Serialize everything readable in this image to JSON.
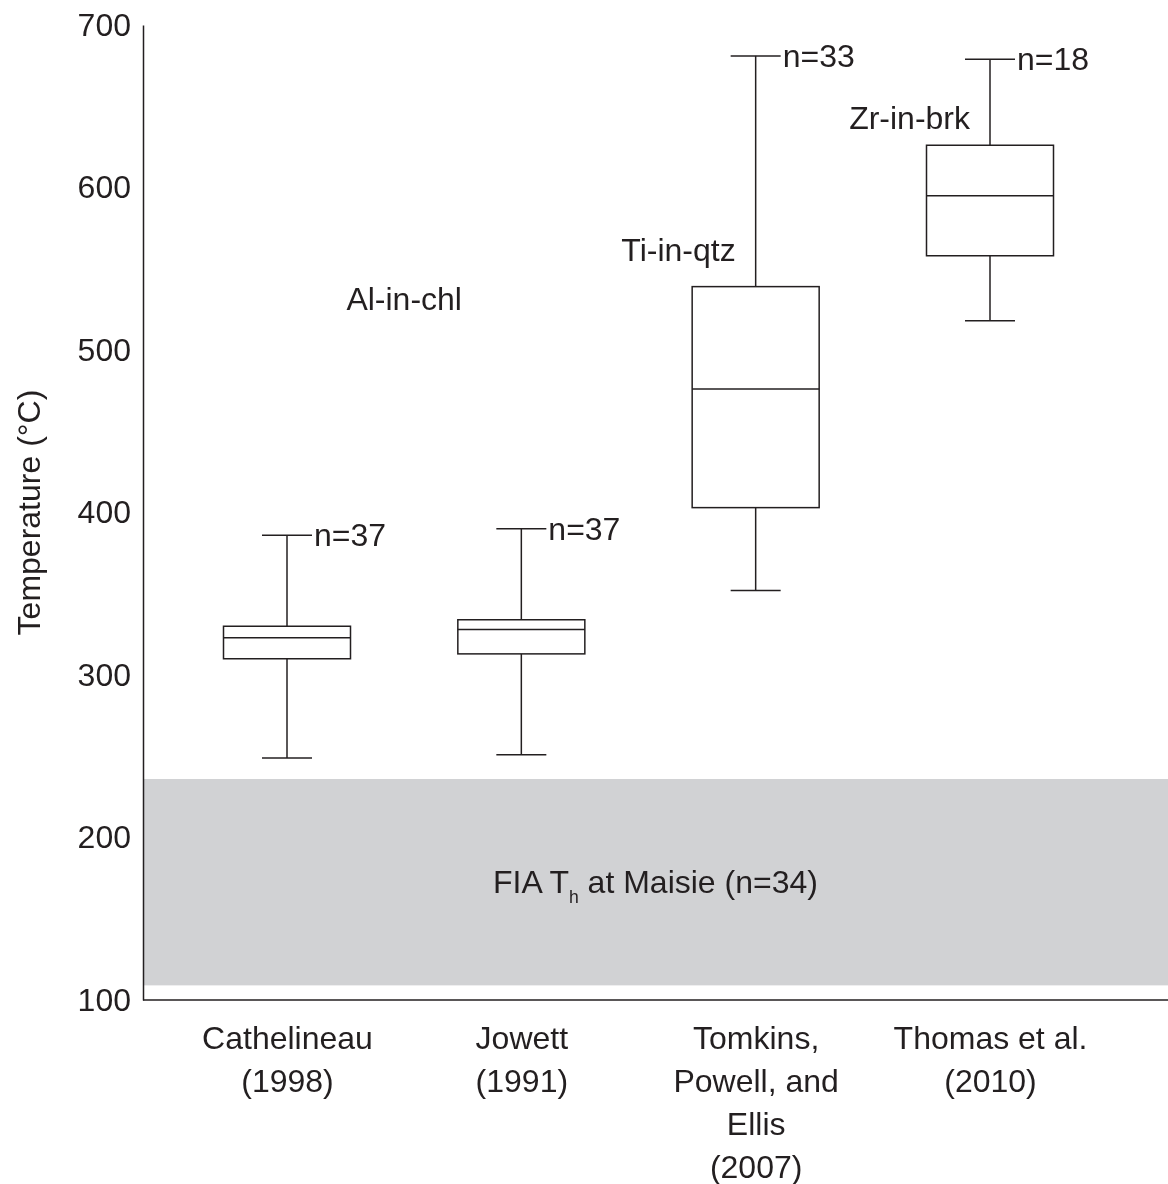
{
  "chart_data": {
    "type": "box",
    "ylabel": "Temperature (°C)",
    "categories": [
      "Cathelineau\n(1998)",
      "Jowett\n(1991)",
      "Tomkins,\nPowell, and\nEllis\n(2007)",
      "Thomas et al.\n(2010)"
    ],
    "boxes": [
      {
        "low": 249,
        "q1": 310,
        "median": 323,
        "q3": 330,
        "high": 386
      },
      {
        "low": 251,
        "q1": 313,
        "median": 328,
        "q3": 334,
        "high": 390
      },
      {
        "low": 352,
        "q1": 403,
        "median": 476,
        "q3": 539,
        "high": 681
      },
      {
        "low": 518,
        "q1": 558,
        "median": 595,
        "q3": 626,
        "high": 679
      }
    ],
    "ylim": [
      100,
      700
    ],
    "yticks": [
      100,
      200,
      300,
      400,
      500,
      600,
      700
    ],
    "bands": [
      {
        "axis": "y",
        "from": 109,
        "to": 236,
        "label": "FIA T$_{h}$ at Maisie (n=34)",
        "color": "#d1d2d4"
      }
    ],
    "annotations": [
      {
        "text": "n=37",
        "x": "Cathelineau\n(1998)",
        "y": 386
      },
      {
        "text": "n=37",
        "x": "Jowett\n(1991)",
        "y": 390
      },
      {
        "text": "n=33",
        "x": "Tomkins,\nPowell, and\nEllis\n(2007)",
        "y": 681
      },
      {
        "text": "n=18",
        "x": "Thomas et al.\n(2010)",
        "y": 679
      },
      "Al-in-chl",
      {
        "text": "Ti-in-qtz",
        "x": "Tomkins,\nPowell, and\nEllis\n(2007)",
        "y": 555
      },
      {
        "text": "Zr-in-brk",
        "x": "Thomas et al.\n(2010)",
        "y": 636
      }
    ],
    "grid": false
  }
}
